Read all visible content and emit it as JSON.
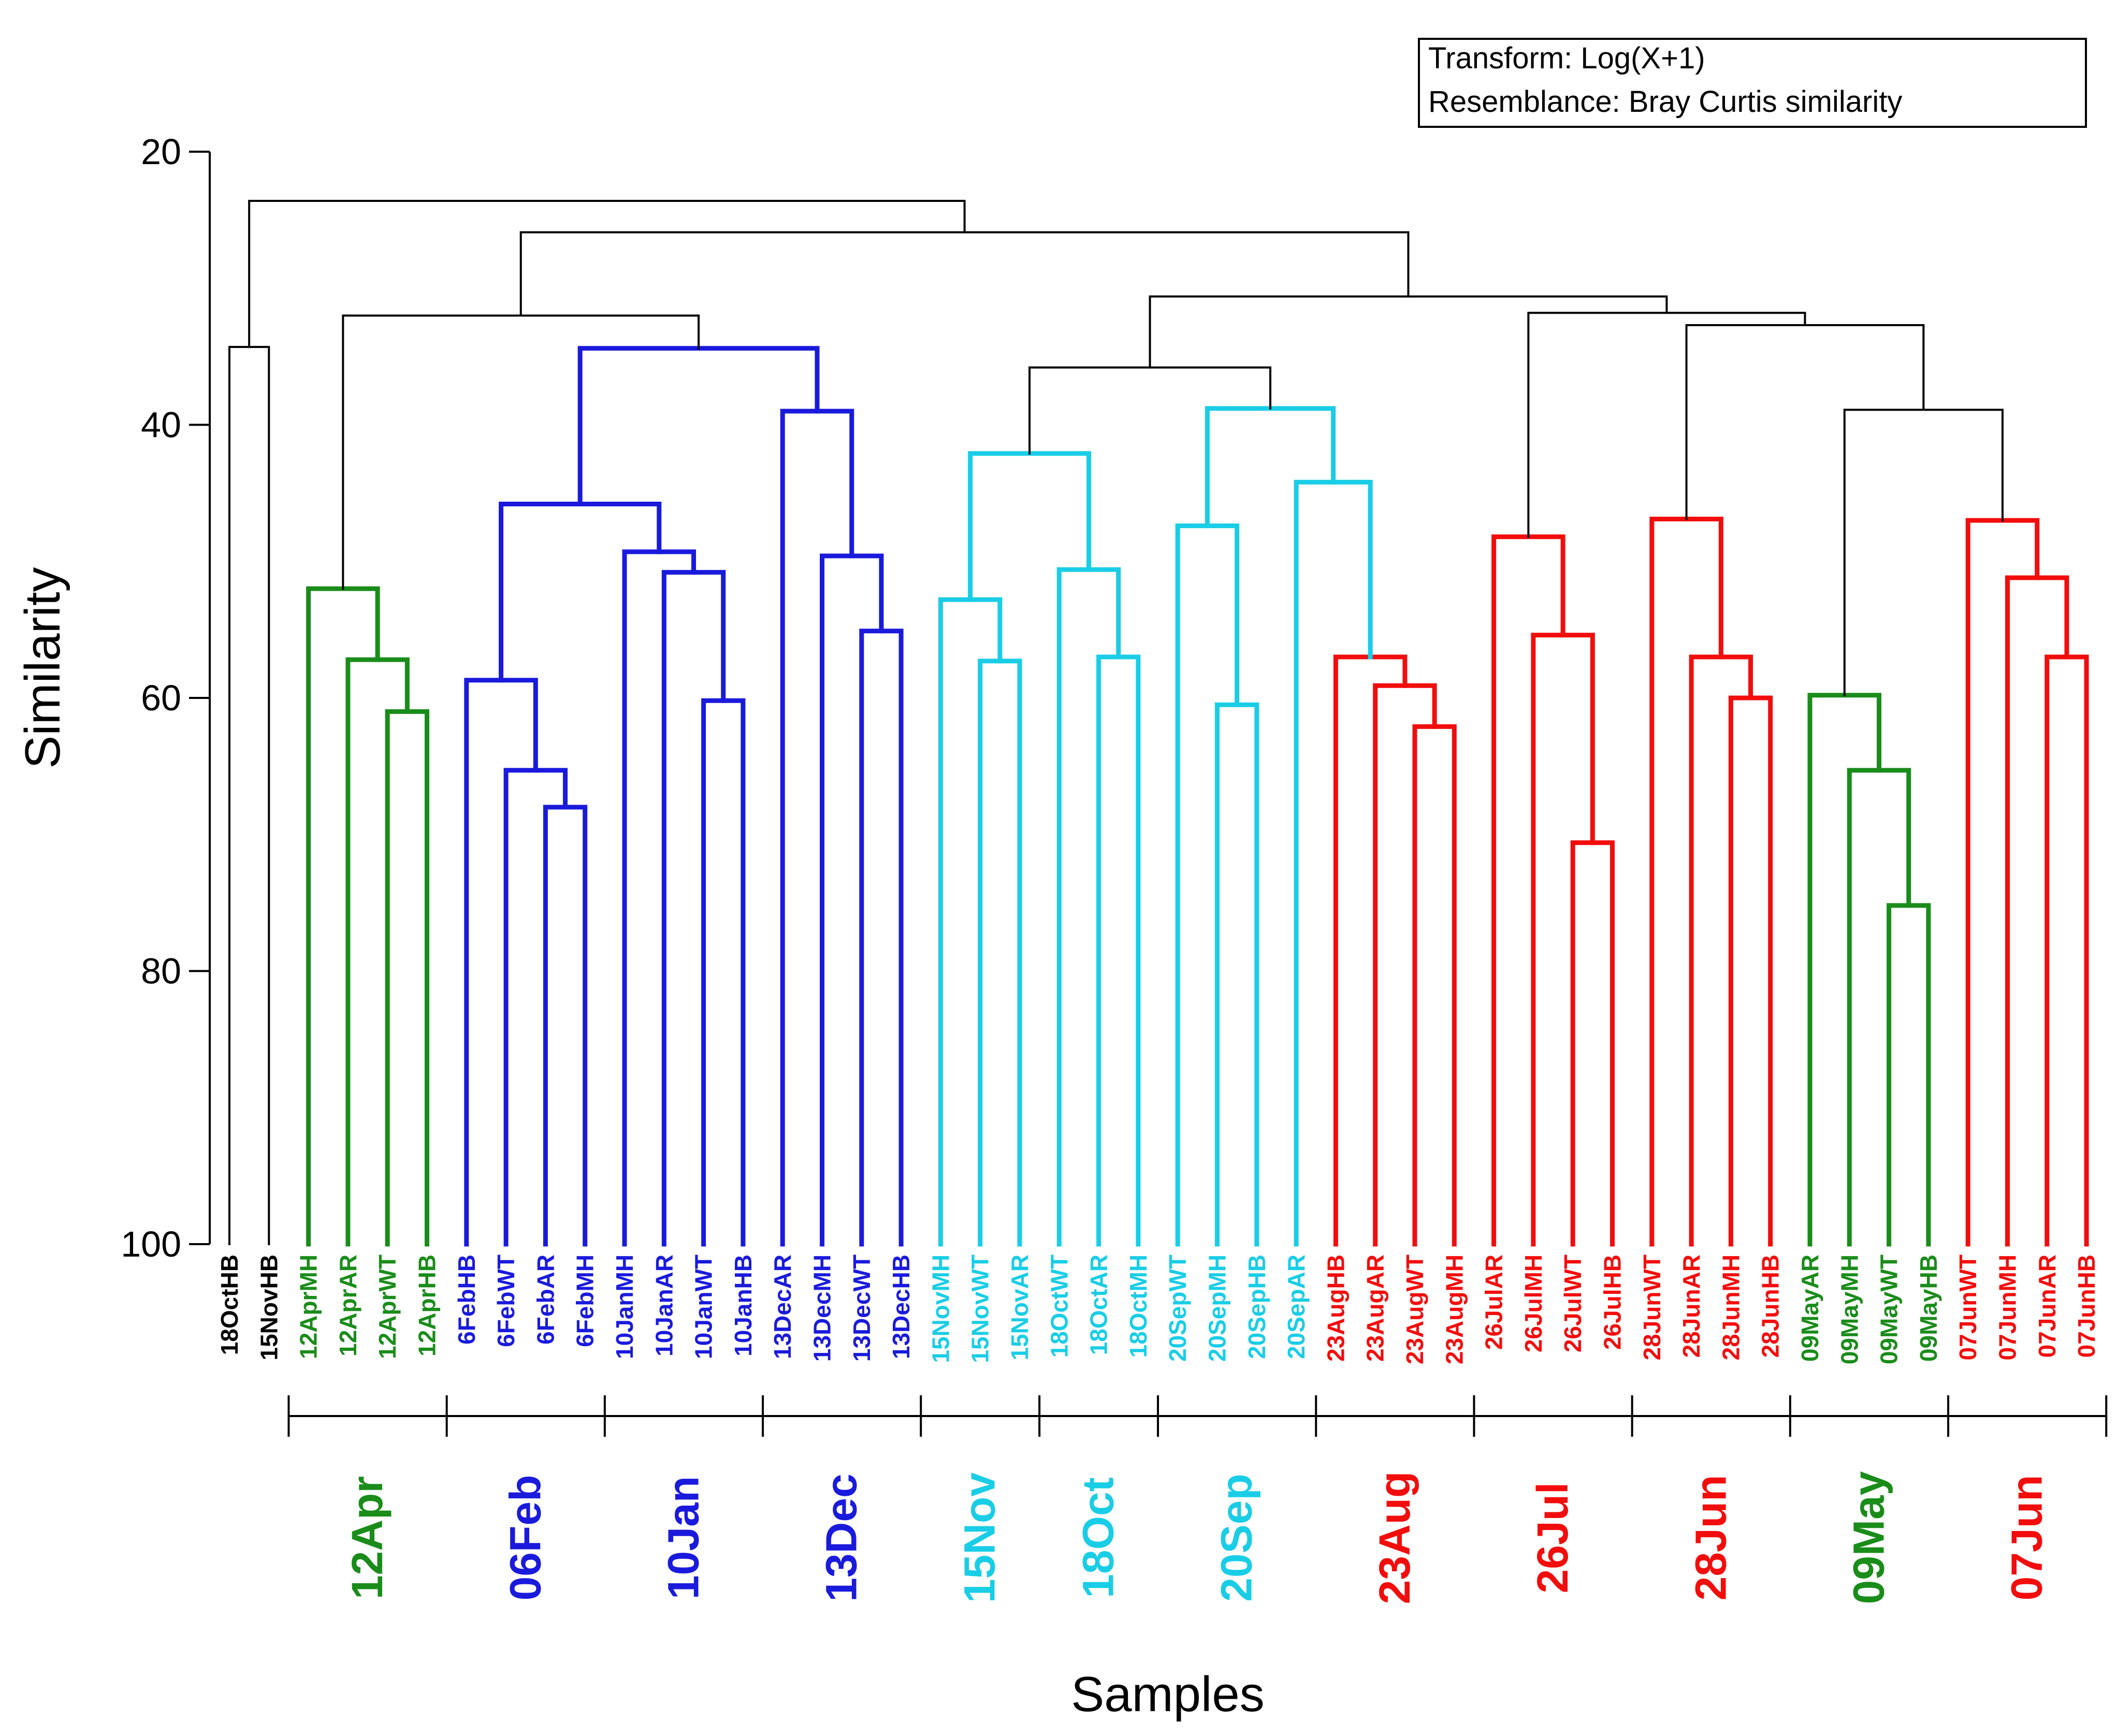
{
  "colors": {
    "black": "#000000",
    "green": "#1a8c1a",
    "blue": "#1a1adc",
    "cyan": "#19cde6",
    "red": "#f20d0d"
  },
  "legend": {
    "line1": "Transform: Log(X+1)",
    "line2": "Resemblance: Bray Curtis similarity"
  },
  "chart_data": {
    "type": "dendrogram",
    "xlabel": "Samples",
    "ylabel": "Similarity",
    "ylim": [
      20,
      100
    ],
    "y_inverted": true,
    "yticks": [
      20,
      40,
      60,
      80,
      100
    ],
    "leaves": [
      {
        "name": "18OctHB",
        "color": "black"
      },
      {
        "name": "15NovHB",
        "color": "black"
      },
      {
        "name": "12AprMH",
        "color": "green"
      },
      {
        "name": "12AprAR",
        "color": "green"
      },
      {
        "name": "12AprWT",
        "color": "green"
      },
      {
        "name": "12AprHB",
        "color": "green"
      },
      {
        "name": "6FebHB",
        "color": "blue"
      },
      {
        "name": "6FebWT",
        "color": "blue"
      },
      {
        "name": "6FebAR",
        "color": "blue"
      },
      {
        "name": "6FebMH",
        "color": "blue"
      },
      {
        "name": "10JanMH",
        "color": "blue"
      },
      {
        "name": "10JanAR",
        "color": "blue"
      },
      {
        "name": "10JanWT",
        "color": "blue"
      },
      {
        "name": "10JanHB",
        "color": "blue"
      },
      {
        "name": "13DecAR",
        "color": "blue"
      },
      {
        "name": "13DecMH",
        "color": "blue"
      },
      {
        "name": "13DecWT",
        "color": "blue"
      },
      {
        "name": "13DecHB",
        "color": "blue"
      },
      {
        "name": "15NovMH",
        "color": "cyan"
      },
      {
        "name": "15NovWT",
        "color": "cyan"
      },
      {
        "name": "15NovAR",
        "color": "cyan"
      },
      {
        "name": "18OctWT",
        "color": "cyan"
      },
      {
        "name": "18OctAR",
        "color": "cyan"
      },
      {
        "name": "18OctMH",
        "color": "cyan"
      },
      {
        "name": "20SepWT",
        "color": "cyan"
      },
      {
        "name": "20SepMH",
        "color": "cyan"
      },
      {
        "name": "20SepHB",
        "color": "cyan"
      },
      {
        "name": "20SepAR",
        "color": "cyan"
      },
      {
        "name": "23AugHB",
        "color": "red"
      },
      {
        "name": "23AugAR",
        "color": "red"
      },
      {
        "name": "23AugWT",
        "color": "red"
      },
      {
        "name": "23AugMH",
        "color": "red"
      },
      {
        "name": "26JulAR",
        "color": "red"
      },
      {
        "name": "26JulMH",
        "color": "red"
      },
      {
        "name": "26JulWT",
        "color": "red"
      },
      {
        "name": "26JulHB",
        "color": "red"
      },
      {
        "name": "28JunWT",
        "color": "red"
      },
      {
        "name": "28JunAR",
        "color": "red"
      },
      {
        "name": "28JunMH",
        "color": "red"
      },
      {
        "name": "28JunHB",
        "color": "red"
      },
      {
        "name": "09MayAR",
        "color": "green"
      },
      {
        "name": "09MayMH",
        "color": "green"
      },
      {
        "name": "09MayWT",
        "color": "green"
      },
      {
        "name": "09MayHB",
        "color": "green"
      },
      {
        "name": "07JunWT",
        "color": "red"
      },
      {
        "name": "07JunMH",
        "color": "red"
      },
      {
        "name": "07JunAR",
        "color": "red"
      },
      {
        "name": "07JunHB",
        "color": "red"
      }
    ],
    "merges": [
      {
        "a": "L0",
        "b": "L1",
        "sim": 34.3,
        "color": "black"
      },
      {
        "a": "L4",
        "b": "L5",
        "sim": 61.0,
        "color": "green"
      },
      {
        "a": "L3",
        "b": "N1",
        "sim": 57.2,
        "color": "green"
      },
      {
        "a": "L2",
        "b": "N2",
        "sim": 52.0,
        "color": "green"
      },
      {
        "a": "L8",
        "b": "L9",
        "sim": 68.0,
        "color": "blue"
      },
      {
        "a": "L7",
        "b": "N4",
        "sim": 65.3,
        "color": "blue"
      },
      {
        "a": "L6",
        "b": "N5",
        "sim": 58.7,
        "color": "blue"
      },
      {
        "a": "L12",
        "b": "L13",
        "sim": 60.2,
        "color": "blue"
      },
      {
        "a": "L11",
        "b": "N7",
        "sim": 50.8,
        "color": "blue"
      },
      {
        "a": "L10",
        "b": "N8",
        "sim": 49.3,
        "color": "blue"
      },
      {
        "a": "N6",
        "b": "N9",
        "sim": 45.8,
        "color": "blue"
      },
      {
        "a": "L16",
        "b": "L17",
        "sim": 55.1,
        "color": "blue"
      },
      {
        "a": "L15",
        "b": "N11",
        "sim": 49.6,
        "color": "blue"
      },
      {
        "a": "L14",
        "b": "N12",
        "sim": 39.0,
        "color": "blue"
      },
      {
        "a": "N10",
        "b": "N13",
        "sim": 34.4,
        "color": "blue"
      },
      {
        "a": "N3",
        "b": "N14",
        "sim": 32.0,
        "color": "black"
      },
      {
        "a": "L19",
        "b": "L20",
        "sim": 57.3,
        "color": "cyan"
      },
      {
        "a": "L18",
        "b": "N16",
        "sim": 52.8,
        "color": "cyan"
      },
      {
        "a": "L22",
        "b": "L23",
        "sim": 57.0,
        "color": "cyan"
      },
      {
        "a": "L21",
        "b": "N18",
        "sim": 50.6,
        "color": "cyan"
      },
      {
        "a": "N17",
        "b": "N19",
        "sim": 42.1,
        "color": "cyan"
      },
      {
        "a": "L25",
        "b": "L26",
        "sim": 60.5,
        "color": "cyan"
      },
      {
        "a": "L24",
        "b": "N21",
        "sim": 47.4,
        "color": "cyan"
      },
      {
        "a": "L30",
        "b": "L31",
        "sim": 62.1,
        "color": "red"
      },
      {
        "a": "L29",
        "b": "N23",
        "sim": 59.1,
        "color": "red"
      },
      {
        "a": "L28",
        "b": "N24",
        "sim": 57.0,
        "color": "red"
      },
      {
        "a": "L27",
        "b": "N25",
        "sim": 44.2,
        "color": "cyan"
      },
      {
        "a": "N22",
        "b": "N26",
        "sim": 38.8,
        "color": "cyan"
      },
      {
        "a": "N20",
        "b": "N27",
        "sim": 35.8,
        "color": "black"
      },
      {
        "a": "L34",
        "b": "L35",
        "sim": 70.6,
        "color": "red"
      },
      {
        "a": "L33",
        "b": "N29",
        "sim": 55.4,
        "color": "red"
      },
      {
        "a": "L32",
        "b": "N30",
        "sim": 48.2,
        "color": "red"
      },
      {
        "a": "L38",
        "b": "L39",
        "sim": 60.0,
        "color": "red"
      },
      {
        "a": "L37",
        "b": "N32",
        "sim": 57.0,
        "color": "red"
      },
      {
        "a": "L36",
        "b": "N33",
        "sim": 46.9,
        "color": "red"
      },
      {
        "a": "L42",
        "b": "L43",
        "sim": 75.2,
        "color": "green"
      },
      {
        "a": "L41",
        "b": "N35",
        "sim": 65.3,
        "color": "green"
      },
      {
        "a": "L40",
        "b": "N36",
        "sim": 59.8,
        "color": "green"
      },
      {
        "a": "L46",
        "b": "L47",
        "sim": 57.0,
        "color": "red"
      },
      {
        "a": "L45",
        "b": "N38",
        "sim": 51.2,
        "color": "red"
      },
      {
        "a": "L44",
        "b": "N39",
        "sim": 47.0,
        "color": "red"
      },
      {
        "a": "N37",
        "b": "N40",
        "sim": 38.9,
        "color": "black"
      },
      {
        "a": "N34",
        "b": "N41",
        "sim": 32.7,
        "color": "black"
      },
      {
        "a": "N31",
        "b": "N42",
        "sim": 31.8,
        "color": "black"
      },
      {
        "a": "N28",
        "b": "N43",
        "sim": 30.6,
        "color": "black"
      },
      {
        "a": "N15",
        "b": "N44",
        "sim": 25.9,
        "color": "black"
      },
      {
        "a": "N0",
        "b": "N45",
        "sim": 23.6,
        "color": "black"
      }
    ],
    "groups": [
      {
        "label": "12Apr",
        "start": 2,
        "end": 5,
        "color": "green"
      },
      {
        "label": "06Feb",
        "start": 6,
        "end": 9,
        "color": "blue"
      },
      {
        "label": "10Jan",
        "start": 10,
        "end": 13,
        "color": "blue"
      },
      {
        "label": "13Dec",
        "start": 14,
        "end": 17,
        "color": "blue"
      },
      {
        "label": "15Nov",
        "start": 18,
        "end": 20,
        "color": "cyan"
      },
      {
        "label": "18Oct",
        "start": 21,
        "end": 23,
        "color": "cyan"
      },
      {
        "label": "20Sep",
        "start": 24,
        "end": 27,
        "color": "cyan"
      },
      {
        "label": "23Aug",
        "start": 28,
        "end": 31,
        "color": "red"
      },
      {
        "label": "26Jul",
        "start": 32,
        "end": 35,
        "color": "red"
      },
      {
        "label": "28Jun",
        "start": 36,
        "end": 39,
        "color": "red"
      },
      {
        "label": "09May",
        "start": 40,
        "end": 43,
        "color": "green"
      },
      {
        "label": "07Jun",
        "start": 44,
        "end": 47,
        "color": "red"
      }
    ]
  }
}
